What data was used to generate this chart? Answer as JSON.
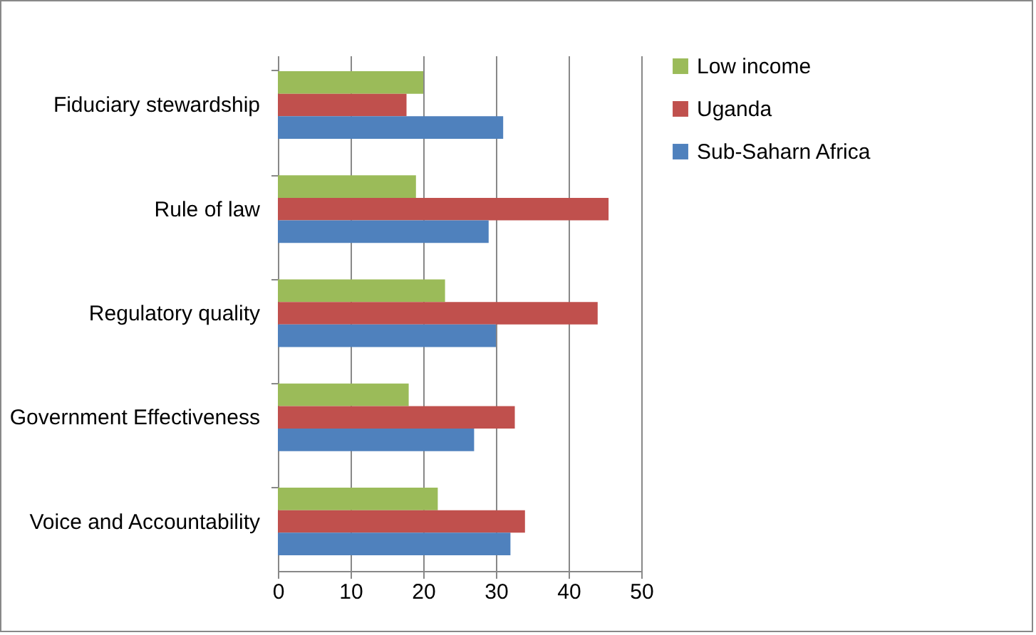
{
  "chart_data": {
    "type": "bar",
    "orientation": "horizontal",
    "categories": [
      "Fiduciary stewardship",
      "Rule of law",
      "Regulatory quality",
      "Government Effectiveness",
      "Voice and Accountability"
    ],
    "series": [
      {
        "name": "Low income",
        "color": "#9bbb59",
        "values": [
          20,
          19,
          23,
          18,
          22
        ]
      },
      {
        "name": "Uganda",
        "color": "#c0504d",
        "values": [
          17.7,
          45.5,
          44,
          32.6,
          34
        ]
      },
      {
        "name": "Sub-Saharn Africa",
        "color": "#4f81bd",
        "values": [
          31,
          29,
          30,
          27,
          32
        ]
      }
    ],
    "xlim": [
      0,
      50
    ],
    "xticks": [
      0,
      10,
      20,
      30,
      40,
      50
    ],
    "grid": "x",
    "legend": "right"
  }
}
